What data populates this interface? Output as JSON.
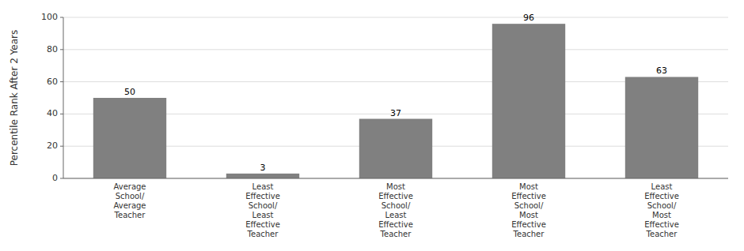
{
  "chart_data": {
    "type": "bar",
    "categories": [
      "Average\nSchool/\nAverage\nTeacher",
      "Least\nEffective\nSchool/\nLeast\nEffective\nTeacher",
      "Most\nEffective\nSchool/\nLeast\nEffective\nTeacher",
      "Most\nEffective\nSchool/\nMost\nEffective\nTeacher",
      "Least\nEffective\nSchool/\nMost\nEffective\nTeacher"
    ],
    "values": [
      50,
      3,
      37,
      96,
      63
    ],
    "color": "#808080",
    "ylabel": "Percentile Rank After 2 Years",
    "ylim": [
      0,
      100
    ],
    "yticks": [
      0,
      20,
      40,
      60,
      80,
      100
    ],
    "grid": true,
    "data_labels": true
  }
}
